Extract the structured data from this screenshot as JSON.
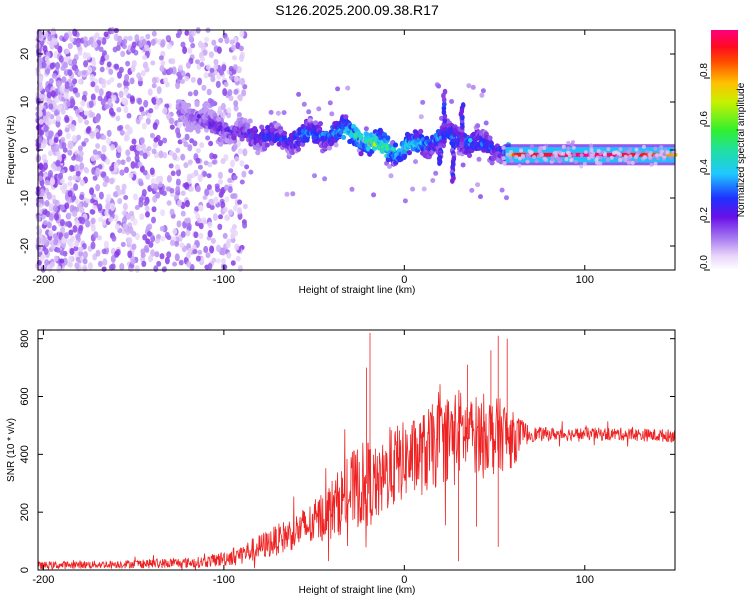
{
  "title": "S126.2025.200.09.38.R17",
  "chart_data": [
    {
      "type": "heatmap",
      "xlabel": "Height of straight line (km)",
      "ylabel": "Frequency (Hz)",
      "xlim": [
        -203,
        150
      ],
      "ylim": [
        -25,
        25
      ],
      "xticks": [
        -200,
        -100,
        0,
        100
      ],
      "yticks": [
        -20,
        -10,
        0,
        10,
        20
      ],
      "colorbar": {
        "label": "Normalized spectral amplitude",
        "range": [
          0,
          1
        ],
        "ticks": [
          "0.0",
          "0.2",
          "0.4",
          "0.6",
          "0.8"
        ],
        "tick_values": [
          0,
          0.2,
          0.4,
          0.6,
          0.8
        ]
      },
      "ridge": {
        "x": [
          -125,
          -115,
          -105,
          -95,
          -85,
          -75,
          -65,
          -55,
          -45,
          -35,
          -25,
          -15,
          -5,
          5,
          15,
          25,
          35,
          45,
          55,
          60,
          80,
          100,
          120,
          140,
          150
        ],
        "frequency": [
          8,
          7,
          5,
          4,
          3,
          3,
          2,
          3,
          3,
          4,
          3,
          1,
          0,
          1,
          2,
          3,
          2,
          1,
          0,
          -1,
          -1,
          -1,
          -1,
          -1,
          -1
        ],
        "amplitude": [
          0.2,
          0.25,
          0.3,
          0.3,
          0.35,
          0.4,
          0.35,
          0.45,
          0.4,
          0.5,
          0.55,
          0.6,
          0.55,
          0.5,
          0.45,
          0.4,
          0.45,
          0.4,
          0.35,
          0.9,
          0.95,
          1.0,
          0.95,
          0.85,
          0.75
        ]
      },
      "colors": {
        "scale": [
          "#ffffff",
          "#e0c8f8",
          "#a070f0",
          "#7a20e0",
          "#2030ff",
          "#20c8ff",
          "#30f070",
          "#d0f000",
          "#ff9000",
          "#ff1010",
          "#ff0080"
        ]
      }
    },
    {
      "type": "line",
      "xlabel": "Height of straight line (km)",
      "ylabel": "SNR (10 * v/v)",
      "xlim": [
        -203,
        150
      ],
      "ylim": [
        0,
        830
      ],
      "xticks": [
        -200,
        -100,
        0,
        100
      ],
      "yticks": [
        0,
        200,
        400,
        600,
        800
      ],
      "series": [
        {
          "color": "#ee2222",
          "envelope": {
            "x": [
              -203,
              -180,
              -160,
              -140,
              -120,
              -110,
              -100,
              -90,
              -80,
              -70,
              -60,
              -50,
              -45,
              -40,
              -35,
              -30,
              -25,
              -20,
              -15,
              -10,
              -5,
              0,
              5,
              10,
              15,
              20,
              25,
              30,
              35,
              40,
              45,
              50,
              55,
              60,
              65,
              70,
              80,
              100,
              120,
              140,
              150
            ],
            "mean": [
              15,
              18,
              20,
              22,
              25,
              28,
              40,
              55,
              80,
              105,
              135,
              160,
              190,
              210,
              240,
              270,
              290,
              300,
              280,
              330,
              360,
              380,
              390,
              400,
              420,
              440,
              460,
              480,
              470,
              470,
              480,
              460,
              470,
              450,
              470,
              470,
              470,
              470,
              470,
              465,
              465
            ],
            "spread": [
              15,
              15,
              15,
              18,
              20,
              22,
              30,
              40,
              50,
              60,
              70,
              90,
              100,
              120,
              130,
              150,
              160,
              170,
              130,
              150,
              160,
              150,
              150,
              160,
              170,
              160,
              170,
              170,
              150,
              150,
              150,
              150,
              140,
              110,
              60,
              30,
              25,
              25,
              25,
              25,
              25
            ]
          },
          "spikes": [
            {
              "x": -19,
              "y": 820
            },
            {
              "x": -21,
              "y": 700
            },
            {
              "x": -16,
              "y": 420
            },
            {
              "x": 35,
              "y": 710
            },
            {
              "x": 52,
              "y": 810
            },
            {
              "x": 57,
              "y": 800
            },
            {
              "x": 48,
              "y": 760
            },
            {
              "x": 30,
              "y": 30
            },
            {
              "x": 52,
              "y": 80
            },
            {
              "x": 40,
              "y": 150
            }
          ]
        }
      ]
    }
  ]
}
